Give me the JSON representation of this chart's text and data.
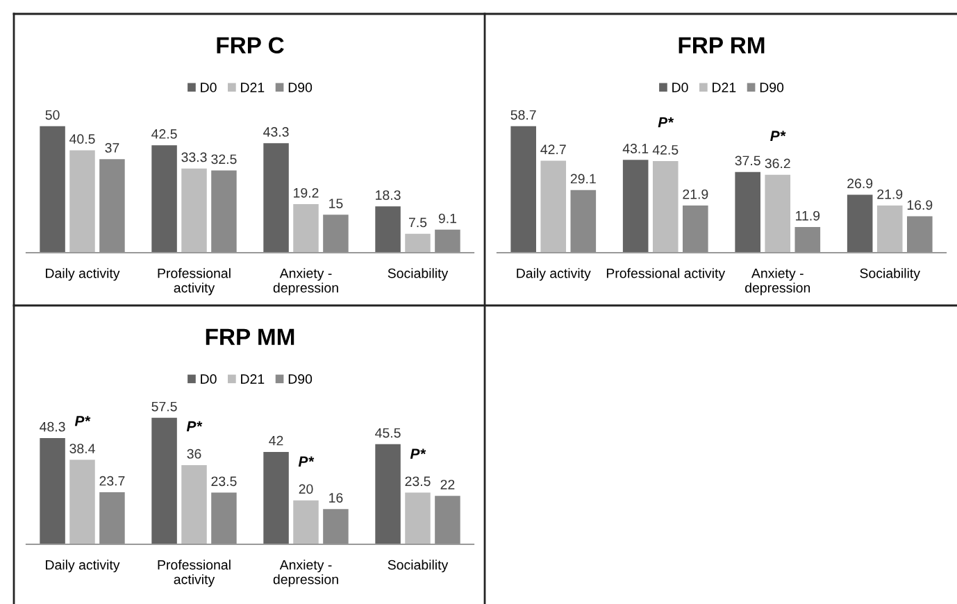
{
  "chart_data": [
    {
      "type": "bar",
      "title": "FRP C",
      "categories": [
        "Daily activity",
        "Professional\nactivity",
        "Anxiety -\ndepression",
        "Sociability"
      ],
      "series": [
        {
          "name": "D0",
          "color": "#636363",
          "values": [
            50,
            42.5,
            43.3,
            18.3
          ]
        },
        {
          "name": "D21",
          "color": "#bdbdbd",
          "values": [
            40.5,
            33.3,
            19.2,
            7.5
          ]
        },
        {
          "name": "D90",
          "color": "#8a8a8a",
          "values": [
            37,
            32.5,
            15,
            9.1
          ]
        }
      ],
      "data_labels": true,
      "legend": "top",
      "grid": false,
      "tick_labels": "x"
    },
    {
      "type": "bar",
      "title": "FRP RM",
      "categories": [
        "Daily activity",
        "Professional activity",
        "Anxiety -\ndepression",
        "Sociability"
      ],
      "series": [
        {
          "name": "D0",
          "color": "#636363",
          "values": [
            58.7,
            43.1,
            37.5,
            26.9
          ]
        },
        {
          "name": "D21",
          "color": "#bdbdbd",
          "values": [
            42.7,
            42.5,
            36.2,
            21.9
          ]
        },
        {
          "name": "D90",
          "color": "#8a8a8a",
          "values": [
            29.1,
            21.9,
            11.9,
            16.9
          ]
        }
      ],
      "annotations": [
        {
          "text": "P*",
          "x": "Professional activity",
          "y": 42.5
        },
        {
          "text": "P*",
          "x": "Anxiety -\ndepression",
          "y": 36.2
        }
      ],
      "data_labels": true,
      "legend": "top",
      "grid": false,
      "tick_labels": "x"
    },
    {
      "type": "bar",
      "title": "FRP MM",
      "categories": [
        "Daily activity",
        "Professional\nactivity",
        "Anxiety -\ndepression",
        "Sociability"
      ],
      "series": [
        {
          "name": "D0",
          "color": "#636363",
          "values": [
            48.3,
            57.5,
            42,
            45.5
          ]
        },
        {
          "name": "D21",
          "color": "#bdbdbd",
          "values": [
            38.4,
            36,
            20,
            23.5
          ]
        },
        {
          "name": "D90",
          "color": "#8a8a8a",
          "values": [
            23.7,
            23.5,
            16,
            22
          ]
        }
      ],
      "annotations": [
        {
          "text": "P*",
          "x": "Daily activity",
          "y": 38.4
        },
        {
          "text": "P*",
          "x": "Professional\nactivity",
          "y": 36
        },
        {
          "text": "P*",
          "x": "Anxiety -\ndepression",
          "y": 20
        },
        {
          "text": "P*",
          "x": "Sociability",
          "y": 23.5
        }
      ],
      "data_labels": true,
      "legend": "top",
      "grid": false,
      "tick_labels": "x"
    }
  ]
}
